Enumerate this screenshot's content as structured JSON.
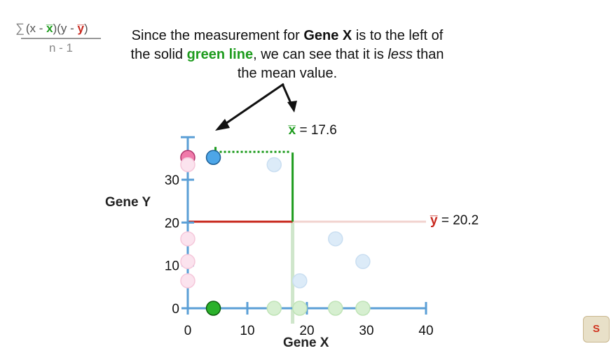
{
  "formula": {
    "sigma": "∑",
    "open1": "(x - ",
    "xbar": "x̅",
    "mid": ")(y - ",
    "ybar": "y̅",
    "close": ")",
    "denominator": "n - 1"
  },
  "caption": {
    "p1": "Since the measurement for ",
    "b1": "Gene X",
    "p2": " is to the left of the solid ",
    "g1": "green line",
    "p3": ", we can see that it is ",
    "i1": "less",
    "p4": " than the mean value."
  },
  "x_mean_label": {
    "sym": "x̅",
    "text": " = 17.6"
  },
  "y_mean_label": {
    "sym": "y̅",
    "text": " = 20.2"
  },
  "colors": {
    "axis": "#5b9fd6",
    "green": "#1e9c1e",
    "red": "#c8281e",
    "blue_point": "#4da6e8",
    "pink_point": "#f07aaa"
  },
  "chart_data": {
    "type": "scatter",
    "xlabel": "Gene X",
    "ylabel": "Gene Y",
    "xlim": [
      0,
      40
    ],
    "ylim": [
      0,
      37
    ],
    "x_ticks": [
      0,
      10,
      20,
      30,
      40
    ],
    "y_ticks": [
      0,
      10,
      20,
      30
    ],
    "x_mean": 17.6,
    "y_mean": 20.2,
    "points": [
      {
        "x": 4.3,
        "y": 35.2,
        "state": "highlight"
      },
      {
        "x": 14.5,
        "y": 33.5,
        "state": "faded"
      },
      {
        "x": 18.8,
        "y": 6.4,
        "state": "faded"
      },
      {
        "x": 24.8,
        "y": 16.2,
        "state": "faded"
      },
      {
        "x": 29.4,
        "y": 10.9,
        "state": "faded"
      }
    ],
    "x_projections": [
      {
        "x": 4.3,
        "state": "highlight"
      },
      {
        "x": 14.5,
        "state": "faded"
      },
      {
        "x": 18.8,
        "state": "faded"
      },
      {
        "x": 24.8,
        "state": "faded"
      },
      {
        "x": 29.4,
        "state": "faded"
      }
    ],
    "y_projections": [
      {
        "y": 35.2,
        "state": "highlight"
      },
      {
        "y": 33.5,
        "state": "faded"
      },
      {
        "y": 16.2,
        "state": "faded"
      },
      {
        "y": 10.9,
        "state": "faded"
      },
      {
        "y": 6.4,
        "state": "faded"
      }
    ]
  }
}
